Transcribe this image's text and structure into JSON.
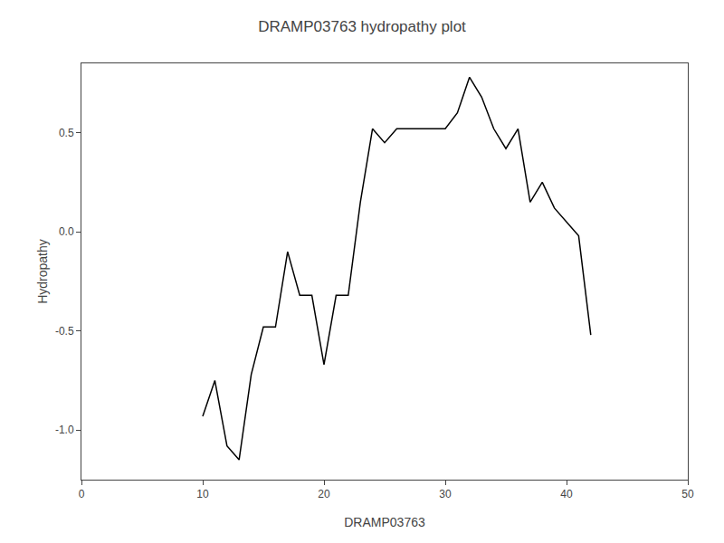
{
  "chart_data": {
    "type": "line",
    "title": "DRAMP03763 hydropathy plot",
    "xlabel": "DRAMP03763",
    "ylabel": "Hydropathy",
    "x": [
      10,
      11,
      12,
      13,
      14,
      15,
      16,
      17,
      18,
      19,
      20,
      21,
      22,
      23,
      24,
      25,
      26,
      27,
      28,
      29,
      30,
      31,
      32,
      33,
      34,
      35,
      36,
      37,
      38,
      39,
      40,
      41,
      42
    ],
    "values": [
      -0.93,
      -0.75,
      -1.08,
      -1.15,
      -0.72,
      -0.48,
      -0.48,
      -0.1,
      -0.32,
      -0.32,
      -0.67,
      -0.32,
      -0.32,
      0.15,
      0.52,
      0.45,
      0.52,
      0.52,
      0.52,
      0.52,
      0.52,
      0.6,
      0.78,
      0.68,
      0.52,
      0.42,
      0.52,
      0.15,
      0.25,
      0.12,
      0.05,
      -0.02,
      -0.52
    ],
    "color": "#000000",
    "xlim": [
      0,
      50
    ],
    "ylim": [
      -1.25,
      0.85
    ],
    "xticks": [
      0,
      10,
      20,
      30,
      40,
      50
    ],
    "yticks": [
      {
        "value": -1.0,
        "label": "-1.0"
      },
      -0.5,
      {
        "value": 0.0,
        "label": "0.0"
      },
      0.5
    ],
    "grid": false
  }
}
